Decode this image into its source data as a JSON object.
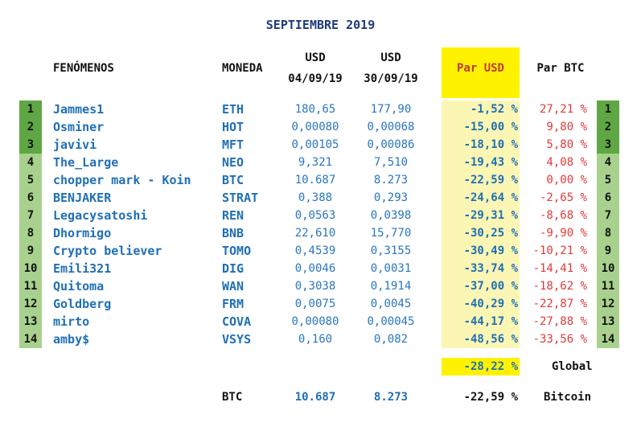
{
  "title": "SEPTIEMBRE 2019",
  "headers": {
    "fenomenos": "FENÓMENOS",
    "moneda": "MONEDA",
    "usd_a_top": "USD",
    "usd_a_date": "04/09/19",
    "usd_b_top": "USD",
    "usd_b_date": "30/09/19",
    "par_usd": "Par USD",
    "par_btc": "Par BTC"
  },
  "colors": {
    "top3": "#5fa744",
    "rest": "#a9d18e",
    "highlight": "#fff200",
    "highlight_light": "#fbf6b4"
  },
  "rows": [
    {
      "rank": "1",
      "name": "Jammes1",
      "coin": "ETH",
      "usd_a": "180,65",
      "usd_b": "177,90",
      "par_usd": "-1,52 %",
      "par_btc": "27,21 %"
    },
    {
      "rank": "2",
      "name": "Osminer",
      "coin": "HOT",
      "usd_a": "0,00080",
      "usd_b": "0,00068",
      "par_usd": "-15,00 %",
      "par_btc": "9,80 %"
    },
    {
      "rank": "3",
      "name": "javivi",
      "coin": "MFT",
      "usd_a": "0,00105",
      "usd_b": "0,00086",
      "par_usd": "-18,10 %",
      "par_btc": "5,80 %"
    },
    {
      "rank": "4",
      "name": "The_Large",
      "coin": "NEO",
      "usd_a": "9,321",
      "usd_b": "7,510",
      "par_usd": "-19,43 %",
      "par_btc": "4,08 %"
    },
    {
      "rank": "5",
      "name": "chopper mark - Koin",
      "coin": "BTC",
      "usd_a": "10.687",
      "usd_b": "8.273",
      "par_usd": "-22,59 %",
      "par_btc": "0,00 %"
    },
    {
      "rank": "6",
      "name": "BENJAKER",
      "coin": "STRAT",
      "usd_a": "0,388",
      "usd_b": "0,293",
      "par_usd": "-24,64 %",
      "par_btc": "-2,65 %"
    },
    {
      "rank": "7",
      "name": "Legacysatoshi",
      "coin": "REN",
      "usd_a": "0,0563",
      "usd_b": "0,0398",
      "par_usd": "-29,31 %",
      "par_btc": "-8,68 %"
    },
    {
      "rank": "8",
      "name": "Dhormigo",
      "coin": "BNB",
      "usd_a": "22,610",
      "usd_b": "15,770",
      "par_usd": "-30,25 %",
      "par_btc": "-9,90 %"
    },
    {
      "rank": "9",
      "name": "Crypto believer",
      "coin": "TOMO",
      "usd_a": "0,4539",
      "usd_b": "0,3155",
      "par_usd": "-30,49 %",
      "par_btc": "-10,21 %"
    },
    {
      "rank": "10",
      "name": "Emili321",
      "coin": "DIG",
      "usd_a": "0,0046",
      "usd_b": "0,0031",
      "par_usd": "-33,74 %",
      "par_btc": "-14,41 %"
    },
    {
      "rank": "11",
      "name": "Quitoma",
      "coin": "WAN",
      "usd_a": "0,3038",
      "usd_b": "0,1914",
      "par_usd": "-37,00 %",
      "par_btc": "-18,62 %"
    },
    {
      "rank": "12",
      "name": "Goldberg",
      "coin": "FRM",
      "usd_a": "0,0075",
      "usd_b": "0,0045",
      "par_usd": "-40,29 %",
      "par_btc": "-22,87 %"
    },
    {
      "rank": "13",
      "name": "mirto",
      "coin": "COVA",
      "usd_a": "0,00080",
      "usd_b": "0,00045",
      "par_usd": "-44,17 %",
      "par_btc": "-27,88 %"
    },
    {
      "rank": "14",
      "name": "amby$",
      "coin": "VSYS",
      "usd_a": "0,160",
      "usd_b": "0,082",
      "par_usd": "-48,56 %",
      "par_btc": "-33,56 %"
    }
  ],
  "global": {
    "value": "-28,22 %",
    "label": "Global"
  },
  "bitcoin": {
    "coin": "BTC",
    "usd_a": "10.687",
    "usd_b": "8.273",
    "par_usd": "-22,59 %",
    "label": "Bitcoin"
  }
}
